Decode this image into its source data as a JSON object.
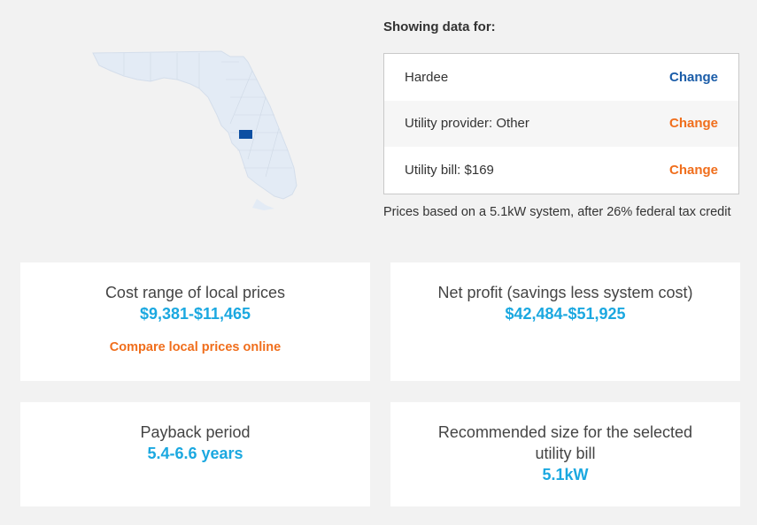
{
  "map": {
    "highlight_color": "#0d4fa2",
    "state_color": "#e3ebf5",
    "icon": "florida-county-map"
  },
  "showing": {
    "title": "Showing data for:",
    "rows": [
      {
        "label": "Hardee",
        "action": "Change",
        "action_color": "#1a5ca8"
      },
      {
        "label": "Utility provider: Other",
        "action": "Change",
        "action_color": "#f06e1c"
      },
      {
        "label": "Utility bill: $169",
        "action": "Change",
        "action_color": "#f06e1c"
      }
    ],
    "note": "Prices based on a 5.1kW system, after 26% federal tax credit"
  },
  "cards": {
    "cost": {
      "label": "Cost range of local prices",
      "value": "$9,381-$11,465",
      "link": "Compare local prices online"
    },
    "profit": {
      "label": "Net profit (savings less system cost)",
      "value": "$42,484-$51,925"
    },
    "payback": {
      "label": "Payback period",
      "value": "5.4-6.6 years"
    },
    "size": {
      "label": "Recommended size for the selected utility bill",
      "value": "5.1kW"
    }
  },
  "colors": {
    "value_blue": "#1ba8e0",
    "accent_orange": "#f06e1c",
    "link_blue": "#1a5ca8"
  }
}
